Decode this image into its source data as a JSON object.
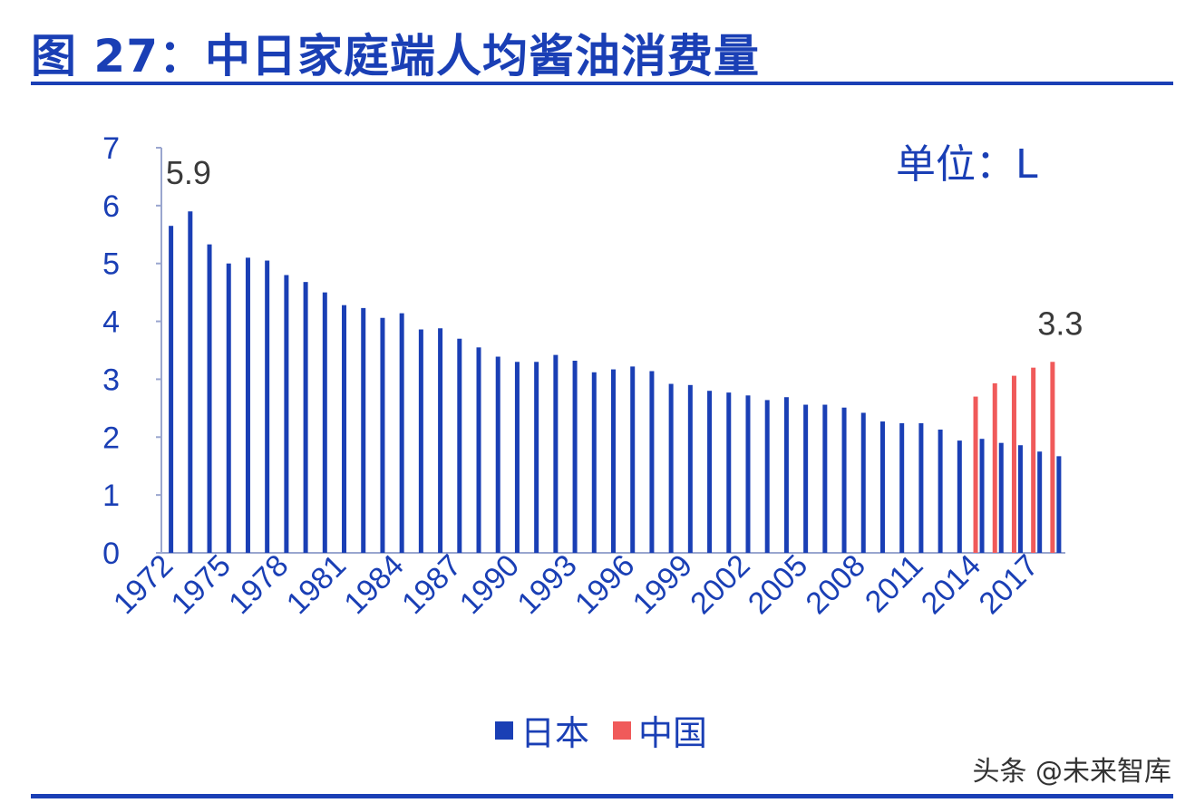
{
  "page": {
    "title": "图 27：中日家庭端人均酱油消费量",
    "watermark": "头条 @未来智库"
  },
  "chart_data": {
    "type": "bar",
    "title": "图 27：中日家庭端人均酱油消费量",
    "unit_label": "单位：L",
    "xlabel": "",
    "ylabel": "",
    "ylim": [
      0,
      7
    ],
    "yticks": [
      "0",
      "1",
      "2",
      "3",
      "4",
      "5",
      "6",
      "7"
    ],
    "grid": false,
    "legend_position": "bottom",
    "x": [
      1972,
      1973,
      1974,
      1975,
      1976,
      1977,
      1978,
      1979,
      1980,
      1981,
      1982,
      1983,
      1984,
      1985,
      1986,
      1987,
      1988,
      1989,
      1990,
      1991,
      1992,
      1993,
      1994,
      1995,
      1996,
      1997,
      1998,
      1999,
      2000,
      2001,
      2002,
      2003,
      2004,
      2005,
      2006,
      2007,
      2008,
      2009,
      2010,
      2011,
      2012,
      2013,
      2014,
      2015,
      2016,
      2017,
      2018
    ],
    "xtick_labels": [
      "1972",
      "1975",
      "1978",
      "1981",
      "1984",
      "1987",
      "1990",
      "1993",
      "1996",
      "1999",
      "2002",
      "2005",
      "2008",
      "2011",
      "2014",
      "2017"
    ],
    "series": [
      {
        "name": "日本",
        "color": "#1a3fb5",
        "values": [
          5.65,
          5.9,
          5.33,
          5.0,
          5.1,
          5.05,
          4.8,
          4.68,
          4.5,
          4.28,
          4.23,
          4.06,
          4.14,
          3.86,
          3.88,
          3.7,
          3.55,
          3.39,
          3.3,
          3.3,
          3.42,
          3.32,
          3.12,
          3.17,
          3.22,
          3.14,
          2.92,
          2.9,
          2.8,
          2.77,
          2.72,
          2.64,
          2.69,
          2.56,
          2.56,
          2.51,
          2.42,
          2.27,
          2.24,
          2.24,
          2.13,
          1.94,
          1.97,
          1.9,
          1.86,
          1.75,
          1.67
        ]
      },
      {
        "name": "中国",
        "color": "#f05a5a",
        "values": [
          null,
          null,
          null,
          null,
          null,
          null,
          null,
          null,
          null,
          null,
          null,
          null,
          null,
          null,
          null,
          null,
          null,
          null,
          null,
          null,
          null,
          null,
          null,
          null,
          null,
          null,
          null,
          null,
          null,
          null,
          null,
          null,
          null,
          null,
          null,
          null,
          null,
          null,
          null,
          null,
          null,
          null,
          2.7,
          2.93,
          3.06,
          3.2,
          3.3
        ]
      }
    ],
    "data_labels": [
      {
        "series": "日本",
        "x": 1973,
        "text": "5.9"
      },
      {
        "series": "中国",
        "x": 2018,
        "text": "3.3"
      }
    ]
  }
}
